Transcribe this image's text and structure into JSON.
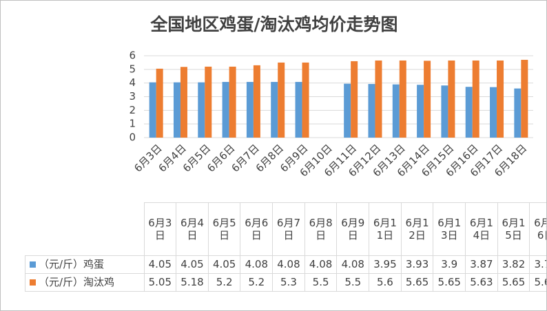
{
  "chart_data": {
    "type": "bar",
    "title": "全国地区鸡蛋/淘汰鸡均价走势图",
    "categories": [
      "6月3日",
      "6月4日",
      "6月5日",
      "6月6日",
      "6月7日",
      "6月8日",
      "6月9日",
      "6月10日",
      "6月11日",
      "6月12日",
      "6月13日",
      "6月14日",
      "6月15日",
      "6月16日",
      "6月17日",
      "6月18日"
    ],
    "series": [
      {
        "name": "（元/斤）鸡蛋",
        "color": "#5b9bd5",
        "values": [
          4.05,
          4.05,
          4.05,
          4.08,
          4.08,
          4.08,
          4.08,
          null,
          3.95,
          3.93,
          3.9,
          3.87,
          3.82,
          3.72,
          3.7,
          3.6
        ]
      },
      {
        "name": "（元/斤）淘汰鸡",
        "color": "#ed7d31",
        "values": [
          5.05,
          5.18,
          5.2,
          5.2,
          5.3,
          5.5,
          5.5,
          null,
          5.6,
          5.65,
          5.65,
          5.63,
          5.65,
          5.65,
          5.65,
          5.7
        ]
      }
    ],
    "ylim": [
      0,
      6
    ],
    "yticks": [
      0,
      1,
      2,
      3,
      4,
      5,
      6
    ],
    "grid": true,
    "data_table": true
  }
}
